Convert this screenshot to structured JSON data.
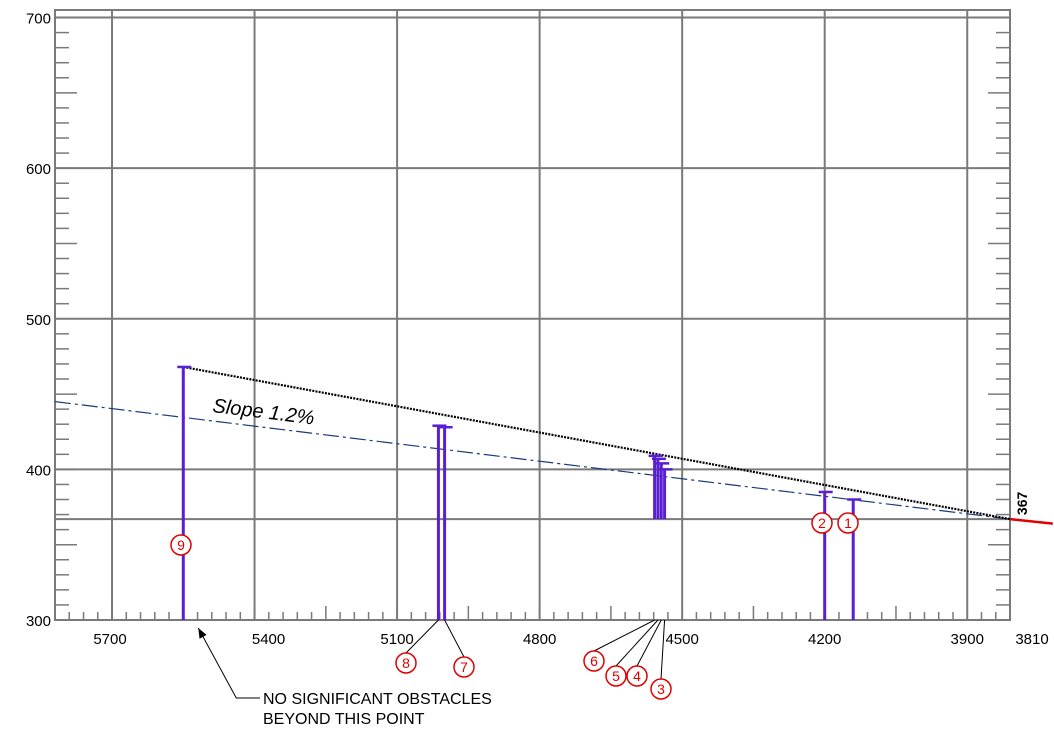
{
  "chart_data": {
    "type": "profile",
    "x_reversed": true,
    "xlim": [
      5820,
      3810
    ],
    "ylim": [
      300,
      705
    ],
    "grid": true,
    "x_ticks": [
      5700,
      5400,
      5100,
      4800,
      4500,
      4200,
      3900,
      3810
    ],
    "y_ticks": [
      300,
      400,
      500,
      600,
      700
    ],
    "reference_elevation": {
      "value": 367,
      "label": "367"
    },
    "surface_line": {
      "x": [
        5550,
        3810
      ],
      "y": [
        468,
        367
      ],
      "color": "#000000"
    },
    "slope_line": {
      "x": [
        5820,
        3810
      ],
      "y": [
        445,
        367
      ],
      "color": "#1a3a7a",
      "label": "Slope 1.2%"
    },
    "extension_line": {
      "x": [
        3810,
        3720
      ],
      "y": [
        367,
        364
      ],
      "color": "#e00000"
    },
    "obstacles": [
      {
        "id": "1",
        "x": 4140,
        "base": 300,
        "top": 380,
        "label_y": 355
      },
      {
        "id": "2",
        "x": 4200,
        "base": 300,
        "top": 385,
        "label_y": 355
      },
      {
        "id": "3",
        "x": 4537,
        "base": 367,
        "top": 400,
        "label_y": 298
      },
      {
        "id": "4",
        "x": 4544,
        "base": 367,
        "top": 404,
        "label_y": 298
      },
      {
        "id": "5",
        "x": 4551,
        "base": 367,
        "top": 407,
        "label_y": 298
      },
      {
        "id": "6",
        "x": 4558,
        "base": 367,
        "top": 409,
        "label_y": 298
      },
      {
        "id": "7",
        "x": 5000,
        "base": 300,
        "top": 428,
        "label_y": 298
      },
      {
        "id": "8",
        "x": 5013,
        "base": 300,
        "top": 429,
        "label_y": 298
      },
      {
        "id": "9",
        "x": 5550,
        "base": 300,
        "top": 468,
        "label_y": 348
      }
    ],
    "annotation": {
      "line1": "NO SIGNIFICANT OBSTACLES",
      "line2": "BEYOND THIS POINT",
      "points_to_x": 5550
    }
  }
}
